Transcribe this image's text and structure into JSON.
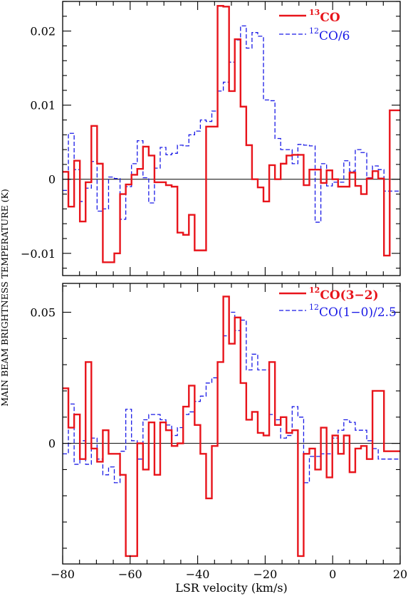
{
  "ylabel": "MAIN BEAM BRIGHTNESS TEMPERATURE (K)",
  "xlabel": "LSR velocity (km/s)",
  "colors": {
    "red": "#e8141b",
    "blue": "#1a1ae6",
    "axis": "#000000"
  },
  "chart_data": [
    {
      "type": "line",
      "step": true,
      "xlim": [
        -80,
        20
      ],
      "ylim": [
        -0.013,
        0.024
      ],
      "yticks": [
        -0.01,
        0,
        0.01,
        0.02
      ],
      "ytick_labels": [
        "−0.01",
        "0",
        "0.01",
        "0.02"
      ],
      "zero_line": true,
      "legend_position": "top-right",
      "series": [
        {
          "label_sup": "13",
          "label_main": "CO",
          "color": "#e8141b",
          "dash": "solid",
          "edges": [
            -80,
            -78.3,
            -76.6,
            -74.9,
            -73.2,
            -71.5,
            -69.8,
            -68.1,
            -66.4,
            -64.7,
            -63.0,
            -61.3,
            -59.6,
            -57.9,
            -56.2,
            -54.5,
            -52.8,
            -51.1,
            -49.4,
            -47.7,
            -46.0,
            -44.3,
            -42.6,
            -40.9,
            -39.2,
            -37.5,
            -35.8,
            -34.1,
            -32.4,
            -30.7,
            -29.0,
            -27.3,
            -25.6,
            -23.9,
            -22.2,
            -20.5,
            -18.8,
            -17.1,
            -15.4,
            -13.7,
            -12.0,
            -10.3,
            -8.6,
            -6.9,
            -5.2,
            -3.5,
            -1.8,
            -0.1,
            1.6,
            3.3,
            5.0,
            6.7,
            8.4,
            10.1,
            11.8,
            13.5,
            15.2,
            16.9,
            18.6,
            20.0
          ],
          "y": [
            0.001,
            -0.0037,
            0.0025,
            -0.0057,
            -0.0004,
            0.0072,
            0.0021,
            -0.0112,
            -0.0112,
            -0.01,
            -0.002,
            -0.0007,
            0.0006,
            0.0014,
            0.0044,
            0.0032,
            -0.0004,
            -0.0004,
            -0.0008,
            -0.001,
            -0.0072,
            -0.0075,
            -0.0048,
            -0.0096,
            -0.0096,
            0.0071,
            0.0071,
            0.0234,
            0.0233,
            0.0119,
            0.0189,
            0.0098,
            0.0046,
            0.0,
            -0.0011,
            -0.003,
            0.0019,
            0.0,
            0.0021,
            0.0032,
            0.0033,
            0.0033,
            -0.0008,
            0.0013,
            0.0013,
            -0.0005,
            0.0012,
            0.0,
            -0.001,
            -0.001,
            0.0009,
            -0.0009,
            -0.002,
            0.0001,
            0.0011,
            0.0001,
            -0.0103,
            0.0093,
            0.0093
          ]
        },
        {
          "label_sup": "12",
          "label_main": "CO/6",
          "color": "#1a1ae6",
          "dash": "dashed",
          "edges": [
            -80,
            -78.3,
            -76.6,
            -74.9,
            -73.2,
            -71.5,
            -69.8,
            -68.1,
            -66.4,
            -64.7,
            -63.0,
            -61.3,
            -59.6,
            -57.9,
            -56.2,
            -54.5,
            -52.8,
            -51.1,
            -49.4,
            -47.7,
            -46.0,
            -44.3,
            -42.6,
            -40.9,
            -39.2,
            -37.5,
            -35.8,
            -34.1,
            -32.4,
            -30.7,
            -29.0,
            -27.3,
            -25.6,
            -23.9,
            -22.2,
            -20.5,
            -18.8,
            -17.1,
            -15.4,
            -13.7,
            -12.0,
            -10.3,
            -8.6,
            -6.9,
            -5.2,
            -3.5,
            -1.8,
            -0.1,
            1.6,
            3.3,
            5.0,
            6.7,
            8.4,
            10.1,
            11.8,
            13.5,
            15.2,
            16.9,
            18.6,
            20.0
          ],
          "y": [
            -0.0015,
            0.0062,
            0.0013,
            -0.003,
            -0.0012,
            0.0024,
            -0.0043,
            -0.004,
            0.0003,
            0.0001,
            -0.0054,
            -0.001,
            0.0021,
            0.0052,
            0.0002,
            -0.0032,
            0.0015,
            0.0043,
            0.0033,
            0.0035,
            0.0046,
            0.0045,
            0.006,
            0.0065,
            0.008,
            0.0078,
            0.0092,
            0.0119,
            0.0131,
            0.0158,
            0.0188,
            0.0207,
            0.0177,
            0.0198,
            0.0193,
            0.0107,
            0.0106,
            0.0055,
            0.004,
            0.004,
            0.0021,
            0.0047,
            0.0046,
            0.0045,
            -0.0058,
            0.0021,
            -0.0009,
            -0.0004,
            -0.0004,
            0.0025,
            0.0011,
            0.004,
            0.0036,
            0.0002,
            0.0018,
            0.0013,
            -0.0016,
            -0.0016,
            -0.0016
          ]
        }
      ]
    },
    {
      "type": "line",
      "step": true,
      "xlim": [
        -80,
        20
      ],
      "ylim": [
        -0.046,
        0.061
      ],
      "xticks": [
        -80,
        -60,
        -40,
        -20,
        0,
        20
      ],
      "xtick_labels": [
        "−80",
        "−60",
        "−40",
        "−20",
        "0",
        "20"
      ],
      "yticks": [
        0,
        0.05
      ],
      "ytick_labels": [
        "0",
        "0.05"
      ],
      "zero_line": true,
      "legend_position": "top-right",
      "series": [
        {
          "label_sup": "12",
          "label_main": "CO(3−2)",
          "color": "#e8141b",
          "dash": "solid",
          "edges": [
            -80,
            -78.3,
            -76.6,
            -74.9,
            -73.2,
            -71.5,
            -69.8,
            -68.1,
            -66.4,
            -64.7,
            -63.0,
            -61.3,
            -59.6,
            -57.9,
            -56.2,
            -54.5,
            -52.8,
            -51.1,
            -49.4,
            -47.7,
            -46.0,
            -44.3,
            -42.6,
            -40.9,
            -39.2,
            -37.5,
            -35.8,
            -34.1,
            -32.4,
            -30.7,
            -29.0,
            -27.3,
            -25.6,
            -23.9,
            -22.2,
            -20.5,
            -18.8,
            -17.1,
            -15.4,
            -13.7,
            -12.0,
            -10.3,
            -8.6,
            -6.9,
            -5.2,
            -3.5,
            -1.8,
            -0.1,
            1.6,
            3.3,
            5.0,
            6.7,
            8.4,
            10.1,
            11.8,
            13.5,
            15.2,
            16.9,
            18.6,
            20.0
          ],
          "y": [
            0.021,
            0.006,
            0.011,
            -0.006,
            0.031,
            -0.002,
            -0.007,
            0.005,
            -0.004,
            -0.004,
            -0.012,
            -0.043,
            -0.043,
            0.0,
            -0.01,
            0.008,
            -0.012,
            0.008,
            0.005,
            -0.001,
            0.0,
            0.014,
            0.022,
            0.007,
            -0.004,
            -0.021,
            -0.001,
            0.031,
            0.056,
            0.038,
            0.048,
            0.023,
            0.009,
            0.012,
            0.004,
            0.003,
            0.031,
            0.007,
            0.01,
            0.004,
            0.005,
            -0.043,
            -0.004,
            -0.002,
            -0.01,
            0.006,
            -0.013,
            0.003,
            -0.004,
            0.003,
            -0.011,
            -0.002,
            -0.001,
            -0.006,
            0.02,
            0.02,
            -0.003,
            -0.003,
            -0.003
          ]
        },
        {
          "label_sup": "12",
          "label_main": "CO(1−0)/2.5",
          "color": "#1a1ae6",
          "dash": "dashed",
          "edges": [
            -80,
            -78.3,
            -76.6,
            -74.9,
            -73.2,
            -71.5,
            -69.8,
            -68.1,
            -66.4,
            -64.7,
            -63.0,
            -61.3,
            -59.6,
            -57.9,
            -56.2,
            -54.5,
            -52.8,
            -51.1,
            -49.4,
            -47.7,
            -46.0,
            -44.3,
            -42.6,
            -40.9,
            -39.2,
            -37.5,
            -35.8,
            -34.1,
            -32.4,
            -30.7,
            -29.0,
            -27.3,
            -25.6,
            -23.9,
            -22.2,
            -20.5,
            -18.8,
            -17.1,
            -15.4,
            -13.7,
            -12.0,
            -10.3,
            -8.6,
            -6.9,
            -5.2,
            -3.5,
            -1.8,
            -0.1,
            1.6,
            3.3,
            5.0,
            6.7,
            8.4,
            10.1,
            11.8,
            13.5,
            15.2,
            16.9,
            18.6,
            20.0
          ],
          "y": [
            -0.004,
            0.015,
            -0.008,
            0.001,
            -0.008,
            0.002,
            -0.006,
            -0.012,
            -0.009,
            -0.015,
            -0.003,
            0.013,
            0.001,
            -0.006,
            0.009,
            0.011,
            0.011,
            0.009,
            0.007,
            0.003,
            0.006,
            0.011,
            0.012,
            0.016,
            0.018,
            0.023,
            0.025,
            0.031,
            0.041,
            0.05,
            0.043,
            0.047,
            0.028,
            0.034,
            0.028,
            0.028,
            0.011,
            0.009,
            0.002,
            0.003,
            0.014,
            0.01,
            -0.015,
            -0.005,
            -0.005,
            -0.004,
            -0.004,
            0.002,
            0.005,
            0.009,
            0.008,
            0.005,
            0.005,
            0.001,
            -0.002,
            -0.006,
            -0.006,
            -0.006,
            -0.006
          ]
        }
      ]
    }
  ]
}
